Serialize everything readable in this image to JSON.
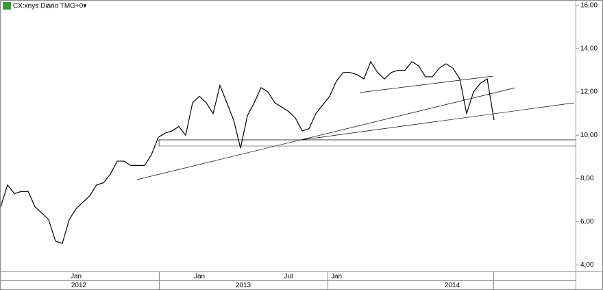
{
  "chart_data": {
    "type": "line",
    "title": "CX:xnys Diário TMG+0▾",
    "categories": [
      null,
      null,
      null,
      null,
      null,
      null,
      null,
      null,
      null,
      null,
      null,
      "Jan",
      null,
      null,
      null,
      null,
      null,
      null,
      null,
      null,
      null,
      null,
      null,
      null,
      null,
      null,
      null,
      null,
      null,
      "Jan",
      null,
      null,
      null,
      null,
      null,
      null,
      null,
      null,
      null,
      null,
      null,
      null,
      "Jul",
      null,
      null,
      null,
      null,
      null,
      null,
      "Jan",
      null,
      null,
      null,
      null,
      null,
      null,
      null,
      null,
      null,
      null,
      null,
      null,
      null,
      null,
      null,
      null,
      null,
      null,
      null,
      null,
      null,
      null,
      null
    ],
    "series": [
      {
        "name": "CX",
        "color": "#000000",
        "values": [
          6.7,
          7.7,
          7.3,
          7.4,
          7.4,
          6.7,
          6.4,
          6.1,
          5.1,
          5.0,
          6.1,
          6.6,
          6.9,
          7.2,
          7.7,
          7.8,
          8.2,
          8.8,
          8.8,
          8.6,
          8.6,
          8.6,
          9.1,
          9.9,
          10.1,
          10.2,
          10.4,
          10.0,
          11.5,
          11.8,
          11.5,
          11.0,
          12.3,
          11.5,
          10.7,
          9.4,
          10.9,
          11.5,
          12.2,
          12.0,
          11.5,
          11.3,
          11.1,
          10.8,
          10.2,
          10.3,
          11.0,
          11.4,
          11.8,
          12.5,
          12.9,
          12.9,
          12.8,
          12.6,
          13.4,
          12.9,
          12.6,
          12.9,
          13.0,
          13.0,
          13.4,
          13.2,
          12.7,
          12.7,
          13.1,
          13.3,
          13.1,
          12.6,
          11.0,
          12.0,
          12.4,
          12.6,
          10.7
        ]
      }
    ],
    "years": [
      "2012",
      "2013",
      "2014"
    ],
    "ylim": [
      3.7,
      16.25
    ],
    "yticks": [
      {
        "value": 4,
        "label": "4,00"
      },
      {
        "value": 6,
        "label": "6,00"
      },
      {
        "value": 8,
        "label": "8,00"
      },
      {
        "value": 10,
        "label": "10,00"
      },
      {
        "value": 12,
        "label": "12,00"
      },
      {
        "value": 14,
        "label": "14,00"
      },
      {
        "value": 16,
        "label": "16,00"
      }
    ],
    "grid": false
  }
}
